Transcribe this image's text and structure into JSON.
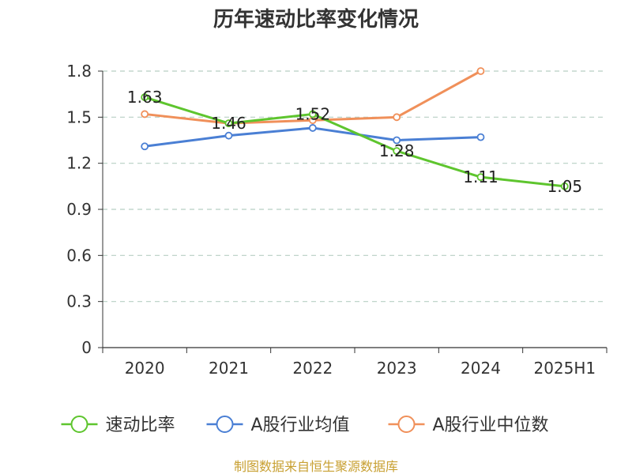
{
  "chart_data": {
    "type": "line",
    "title": "历年速动比率变化情况",
    "xlabel": "",
    "ylabel": "",
    "categories": [
      "2020",
      "2021",
      "2022",
      "2023",
      "2024",
      "2025H1"
    ],
    "ylim": [
      0,
      1.8
    ],
    "yticks": [
      "0",
      "0.3",
      "0.6",
      "0.9",
      "1.2",
      "1.5",
      "1.8"
    ],
    "grid": true,
    "legend_position": "bottom",
    "series": [
      {
        "name": "速动比率",
        "color": "#5ec52e",
        "values": [
          1.63,
          1.46,
          1.52,
          1.28,
          1.11,
          1.05
        ],
        "labels": [
          "1.63",
          "1.46",
          "1.52",
          "1.28",
          "1.11",
          "1.05"
        ],
        "show_labels": true
      },
      {
        "name": "A股行业均值",
        "color": "#4a7fd4",
        "values": [
          1.31,
          1.38,
          1.43,
          1.35,
          1.37,
          null
        ],
        "show_labels": false
      },
      {
        "name": "A股行业中位数",
        "color": "#f0905a",
        "values": [
          1.52,
          1.46,
          1.48,
          1.5,
          1.8,
          null
        ],
        "show_labels": false
      }
    ],
    "source": "制图数据来自恒生聚源数据库"
  }
}
